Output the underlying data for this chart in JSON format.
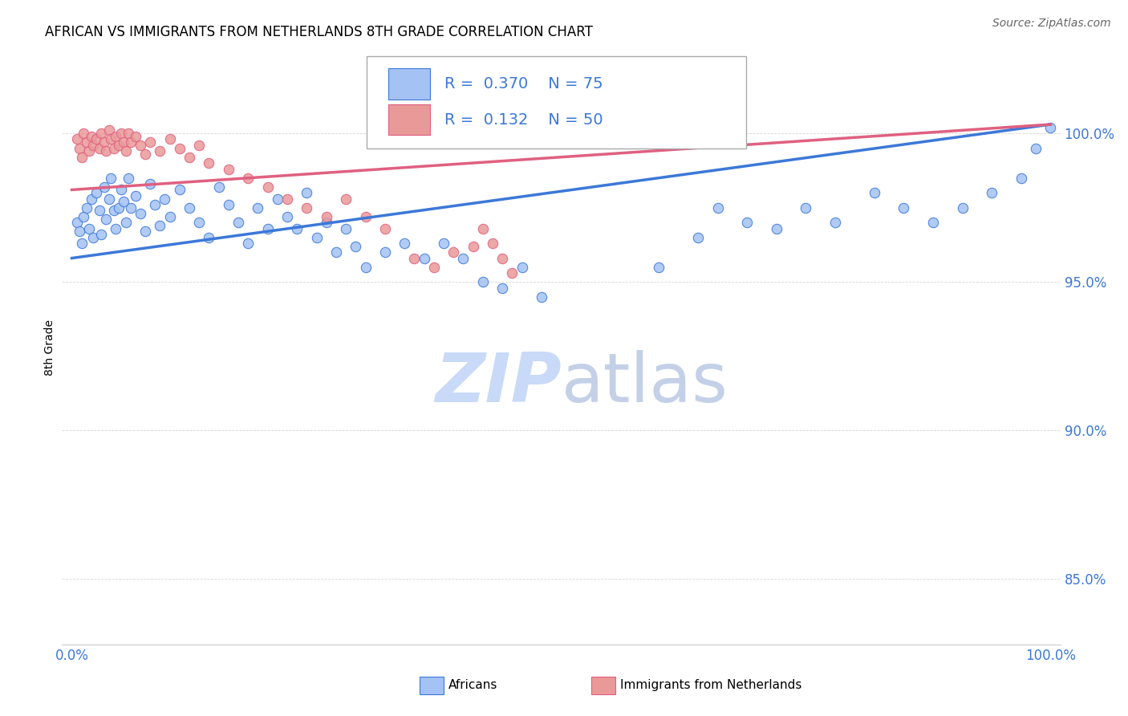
{
  "title": "AFRICAN VS IMMIGRANTS FROM NETHERLANDS 8TH GRADE CORRELATION CHART",
  "source": "Source: ZipAtlas.com",
  "ylabel": "8th Grade",
  "y_ticks": [
    0.85,
    0.9,
    0.95,
    1.0
  ],
  "y_tick_labels": [
    "85.0%",
    "90.0%",
    "95.0%",
    "100.0%"
  ],
  "xlim": [
    -0.01,
    1.01
  ],
  "ylim": [
    0.828,
    1.028
  ],
  "africans_R": 0.37,
  "africans_N": 75,
  "netherlands_R": 0.132,
  "netherlands_N": 50,
  "blue_color": "#a4c2f4",
  "blue_line_color": "#3c78d8",
  "pink_color": "#ea9999",
  "pink_line_color": "#e06080",
  "legend_text_color": "#3c78d8",
  "watermark_color": "#c9daf8",
  "africans_x": [
    0.005,
    0.008,
    0.01,
    0.012,
    0.015,
    0.018,
    0.02,
    0.022,
    0.025,
    0.028,
    0.03,
    0.033,
    0.035,
    0.038,
    0.04,
    0.043,
    0.045,
    0.048,
    0.05,
    0.053,
    0.055,
    0.058,
    0.06,
    0.065,
    0.07,
    0.075,
    0.08,
    0.085,
    0.09,
    0.095,
    0.1,
    0.11,
    0.12,
    0.13,
    0.14,
    0.15,
    0.16,
    0.17,
    0.18,
    0.19,
    0.2,
    0.21,
    0.22,
    0.23,
    0.24,
    0.25,
    0.26,
    0.27,
    0.28,
    0.29,
    0.3,
    0.32,
    0.34,
    0.36,
    0.38,
    0.4,
    0.42,
    0.44,
    0.46,
    0.48,
    0.6,
    0.64,
    0.66,
    0.69,
    0.72,
    0.75,
    0.78,
    0.82,
    0.85,
    0.88,
    0.91,
    0.94,
    0.97,
    0.985,
    1.0
  ],
  "africans_y": [
    0.97,
    0.967,
    0.963,
    0.972,
    0.975,
    0.968,
    0.978,
    0.965,
    0.98,
    0.974,
    0.966,
    0.982,
    0.971,
    0.978,
    0.985,
    0.974,
    0.968,
    0.975,
    0.981,
    0.977,
    0.97,
    0.985,
    0.975,
    0.979,
    0.973,
    0.967,
    0.983,
    0.976,
    0.969,
    0.978,
    0.972,
    0.981,
    0.975,
    0.97,
    0.965,
    0.982,
    0.976,
    0.97,
    0.963,
    0.975,
    0.968,
    0.978,
    0.972,
    0.968,
    0.98,
    0.965,
    0.97,
    0.96,
    0.968,
    0.962,
    0.955,
    0.96,
    0.963,
    0.958,
    0.963,
    0.958,
    0.95,
    0.948,
    0.955,
    0.945,
    0.955,
    0.965,
    0.975,
    0.97,
    0.968,
    0.975,
    0.97,
    0.98,
    0.975,
    0.97,
    0.975,
    0.98,
    0.985,
    0.995,
    1.002
  ],
  "netherlands_x": [
    0.005,
    0.008,
    0.01,
    0.012,
    0.015,
    0.018,
    0.02,
    0.022,
    0.025,
    0.028,
    0.03,
    0.033,
    0.035,
    0.038,
    0.04,
    0.043,
    0.045,
    0.048,
    0.05,
    0.053,
    0.055,
    0.058,
    0.06,
    0.065,
    0.07,
    0.075,
    0.08,
    0.09,
    0.1,
    0.11,
    0.12,
    0.13,
    0.14,
    0.16,
    0.18,
    0.2,
    0.22,
    0.24,
    0.26,
    0.28,
    0.3,
    0.32,
    0.35,
    0.37,
    0.39,
    0.41,
    0.42,
    0.43,
    0.44,
    0.45
  ],
  "netherlands_y": [
    0.998,
    0.995,
    0.992,
    1.0,
    0.997,
    0.994,
    0.999,
    0.996,
    0.998,
    0.995,
    1.0,
    0.997,
    0.994,
    1.001,
    0.998,
    0.995,
    0.999,
    0.996,
    1.0,
    0.997,
    0.994,
    1.0,
    0.997,
    0.999,
    0.996,
    0.993,
    0.997,
    0.994,
    0.998,
    0.995,
    0.992,
    0.996,
    0.99,
    0.988,
    0.985,
    0.982,
    0.978,
    0.975,
    0.972,
    0.978,
    0.972,
    0.968,
    0.958,
    0.955,
    0.96,
    0.962,
    0.968,
    0.963,
    0.958,
    0.953
  ],
  "blue_trend_start_y": 0.958,
  "blue_trend_end_y": 1.003,
  "pink_trend_start_y": 0.981,
  "pink_trend_end_y": 1.003
}
